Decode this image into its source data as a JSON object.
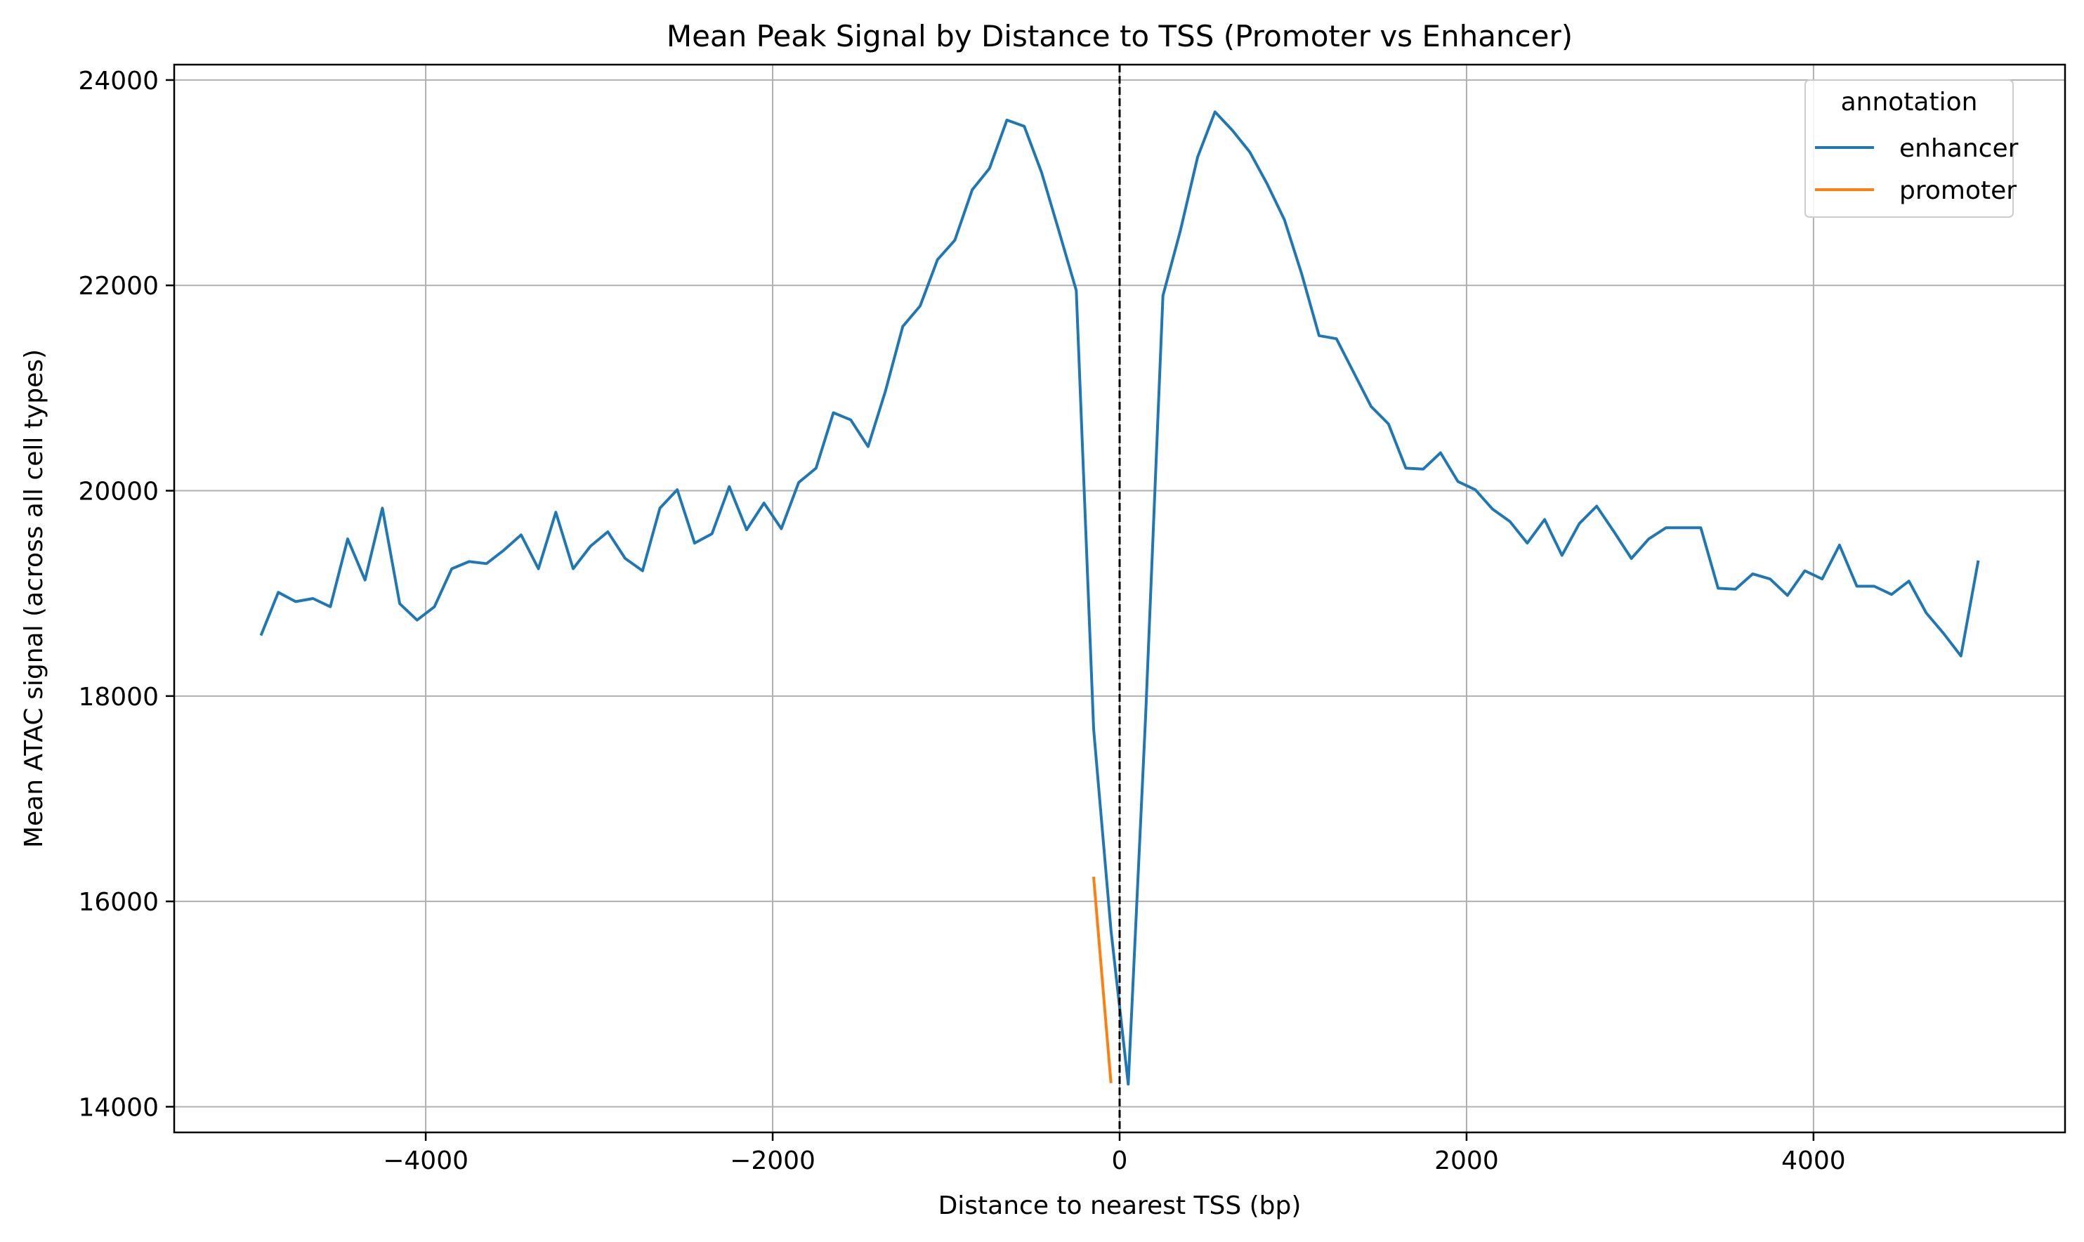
{
  "chart_data": {
    "type": "line",
    "title": "Mean Peak Signal by Distance to TSS (Promoter vs Enhancer)",
    "xlabel": "Distance to nearest TSS (bp)",
    "ylabel": "Mean ATAC signal (across all cell types)",
    "xlim": [
      -5450,
      5450
    ],
    "ylim": [
      13750,
      24150
    ],
    "xticks": [
      -4000,
      -2000,
      0,
      2000,
      4000
    ],
    "xtick_labels": [
      "−4000",
      "−2000",
      "0",
      "2000",
      "4000"
    ],
    "yticks": [
      14000,
      16000,
      18000,
      20000,
      22000,
      24000
    ],
    "ytick_labels": [
      "14000",
      "16000",
      "18000",
      "20000",
      "22000",
      "24000"
    ],
    "grid": true,
    "vline": {
      "x": 0,
      "style": "dashed",
      "color": "#000000"
    },
    "legend": {
      "title": "annotation",
      "position": "top-right"
    },
    "series": [
      {
        "name": "enhancer",
        "color": "#1f77b4",
        "x": [
          -4950,
          -4850,
          -4750,
          -4650,
          -4550,
          -4450,
          -4350,
          -4250,
          -4150,
          -4050,
          -3950,
          -3850,
          -3750,
          -3650,
          -3550,
          -3450,
          -3350,
          -3250,
          -3150,
          -3050,
          -2950,
          -2850,
          -2750,
          -2650,
          -2550,
          -2450,
          -2350,
          -2250,
          -2150,
          -2050,
          -1950,
          -1850,
          -1750,
          -1650,
          -1550,
          -1450,
          -1350,
          -1250,
          -1150,
          -1050,
          -950,
          -850,
          -750,
          -650,
          -550,
          -450,
          -350,
          -250,
          -150,
          -50,
          50,
          150,
          250,
          350,
          450,
          550,
          650,
          750,
          850,
          950,
          1050,
          1150,
          1250,
          1350,
          1450,
          1550,
          1650,
          1750,
          1850,
          1950,
          2050,
          2150,
          2250,
          2350,
          2450,
          2550,
          2650,
          2750,
          2850,
          2950,
          3050,
          3150,
          3250,
          3350,
          3450,
          3550,
          3650,
          3750,
          3850,
          3950,
          4050,
          4150,
          4250,
          4350,
          4450,
          4550,
          4650,
          4750,
          4850,
          4950
        ],
        "values": [
          18590,
          19010,
          18920,
          18950,
          18870,
          19530,
          19130,
          19830,
          18900,
          18740,
          18870,
          19240,
          19310,
          19290,
          19420,
          19570,
          19240,
          19790,
          19240,
          19460,
          19600,
          19340,
          19220,
          19830,
          20010,
          19490,
          19580,
          20040,
          19620,
          19880,
          19630,
          20080,
          20220,
          20760,
          20690,
          20430,
          20970,
          21600,
          21800,
          22250,
          22440,
          22930,
          23140,
          23610,
          23550,
          23100,
          22530,
          21950,
          17680,
          15720,
          14220,
          17800,
          21900,
          22530,
          23250,
          23690,
          23510,
          23300,
          22990,
          22640,
          22110,
          21510,
          21480,
          21150,
          20820,
          20650,
          20220,
          20210,
          20370,
          20090,
          20010,
          19820,
          19700,
          19490,
          19720,
          19370,
          19680,
          19850,
          19600,
          19340,
          19530,
          19640,
          19640,
          19640,
          19050,
          19040,
          19190,
          19140,
          18980,
          19220,
          19140,
          19470,
          19070,
          19070,
          18990,
          19120,
          18810,
          18610,
          18390,
          19320
        ]
      },
      {
        "name": "promoter",
        "color": "#ff7f0e",
        "x": [
          -150,
          -50
        ],
        "values": [
          16240,
          14230
        ]
      }
    ]
  }
}
